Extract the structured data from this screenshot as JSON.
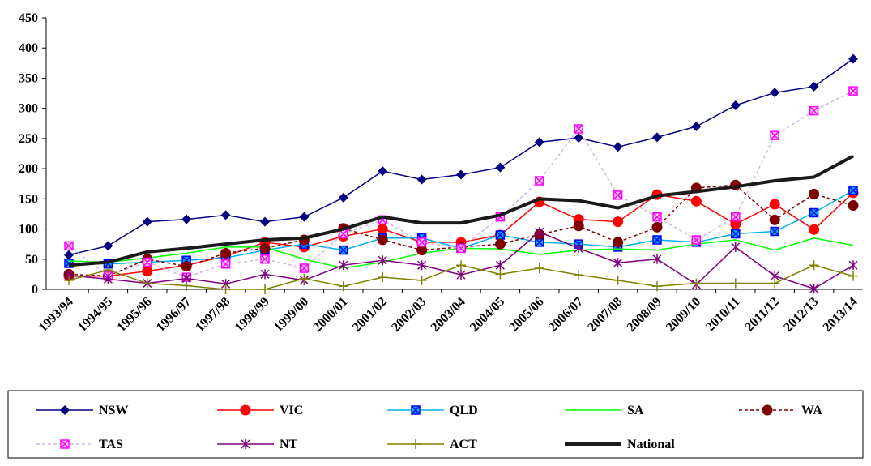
{
  "chart_data": {
    "type": "line",
    "categories": [
      "1993/94",
      "1994/95",
      "1995/96",
      "1996/97",
      "1997/98",
      "1998/99",
      "1999/00",
      "2000/01",
      "2001/02",
      "2002/03",
      "2003/04",
      "2004/05",
      "2005/06",
      "2006/07",
      "2007/08",
      "2008/09",
      "2009/10",
      "2010/11",
      "2011/12",
      "2012/13",
      "2013/14"
    ],
    "ylim": [
      0,
      450
    ],
    "yticks": [
      0,
      50,
      100,
      150,
      200,
      250,
      300,
      350,
      400,
      450
    ],
    "series": [
      {
        "name": "NSW",
        "color": "#000080",
        "marker": "diamond",
        "dash": false,
        "line_width": 1.5,
        "values": [
          57,
          72,
          112,
          116,
          123,
          112,
          120,
          152,
          196,
          182,
          190,
          202,
          244,
          251,
          236,
          252,
          270,
          305,
          326,
          336,
          382
        ]
      },
      {
        "name": "VIC",
        "color": "#ff0000",
        "marker": "circle",
        "dash": false,
        "line_width": 1.5,
        "values": [
          22,
          22,
          30,
          40,
          55,
          78,
          70,
          88,
          100,
          78,
          78,
          90,
          145,
          116,
          112,
          157,
          146,
          108,
          141,
          99,
          160
        ]
      },
      {
        "name": "QLD",
        "color": "#00b0f0",
        "marker": "xsquare",
        "dash": false,
        "line_width": 1.5,
        "values": [
          43,
          42,
          45,
          48,
          52,
          65,
          75,
          65,
          85,
          85,
          68,
          90,
          78,
          75,
          70,
          82,
          78,
          92,
          96,
          127,
          164
        ]
      },
      {
        "name": "SA",
        "color": "#00ff00",
        "marker": "none",
        "dash": false,
        "line_width": 1.5,
        "values": [
          47,
          45,
          52,
          60,
          70,
          70,
          50,
          35,
          45,
          60,
          68,
          67,
          58,
          65,
          67,
          65,
          75,
          82,
          65,
          85,
          73
        ]
      },
      {
        "name": "WA",
        "color": "#800000",
        "marker": "circle",
        "dash": true,
        "line_width": 1.5,
        "values": [
          25,
          22,
          50,
          38,
          60,
          68,
          82,
          101,
          82,
          65,
          70,
          75,
          91,
          105,
          78,
          103,
          168,
          173,
          115,
          158,
          139
        ]
      },
      {
        "name": "TAS",
        "color": "#ccb8e0",
        "marker": "cross",
        "dash": true,
        "line_width": 1.5,
        "values": [
          72,
          22,
          45,
          20,
          42,
          50,
          35,
          92,
          115,
          78,
          68,
          120,
          180,
          266,
          156,
          120,
          82,
          120,
          255,
          296,
          329
        ]
      },
      {
        "name": "NT",
        "color": "#800080",
        "marker": "star",
        "dash": false,
        "line_width": 1.5,
        "values": [
          23,
          17,
          10,
          18,
          9,
          25,
          15,
          40,
          48,
          40,
          24,
          40,
          95,
          68,
          44,
          50,
          8,
          70,
          22,
          1,
          40
        ]
      },
      {
        "name": "ACT",
        "color": "#808000",
        "marker": "plus",
        "dash": false,
        "line_width": 1.5,
        "values": [
          15,
          32,
          10,
          6,
          0,
          0,
          18,
          5,
          20,
          15,
          40,
          25,
          35,
          24,
          15,
          5,
          10,
          10,
          10,
          40,
          22
        ]
      },
      {
        "name": "National",
        "color": "#1a1a1a",
        "marker": "none",
        "dash": false,
        "line_width": 4,
        "values": [
          40,
          45,
          62,
          68,
          75,
          82,
          85,
          100,
          120,
          110,
          110,
          123,
          150,
          147,
          135,
          155,
          162,
          170,
          180,
          186,
          221
        ]
      }
    ]
  }
}
